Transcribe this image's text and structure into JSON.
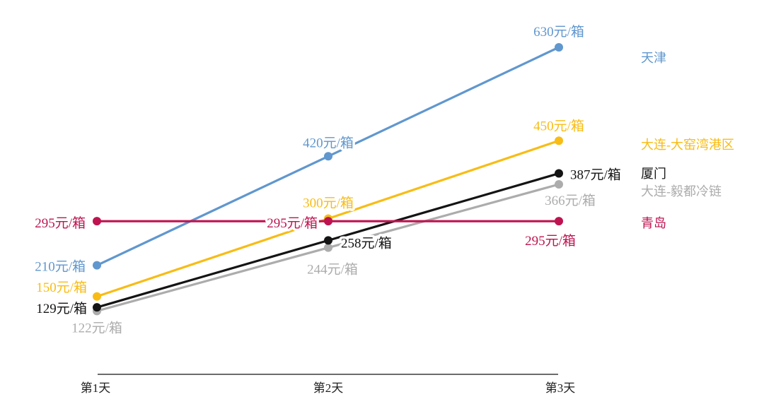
{
  "page": {
    "background": "#FFFFFF"
  },
  "chart_data": {
    "type": "line",
    "title": "",
    "categories": [
      "第1天",
      "第2天",
      "第3天"
    ],
    "unit_suffix": "元/箱",
    "series": [
      {
        "name": "天津",
        "color": "#6097CE",
        "values": [
          210,
          420,
          630
        ]
      },
      {
        "name": "大连-大窑湾港区",
        "color": "#F8BC15",
        "values": [
          150,
          300,
          450
        ]
      },
      {
        "name": "厦门",
        "color": "#141414",
        "values": [
          129,
          258,
          387
        ]
      },
      {
        "name": "大连-毅都冷链",
        "color": "#ACACAC",
        "values": [
          122,
          244,
          366
        ]
      },
      {
        "name": "青岛",
        "color": "#BE1350",
        "values": [
          295,
          295,
          295
        ]
      }
    ],
    "point_labels": [
      [
        "210元/箱",
        "420元/箱",
        "630元/箱"
      ],
      [
        "150元/箱",
        "300元/箱",
        "450元/箱"
      ],
      [
        "129元/箱",
        "258元/箱",
        "387元/箱"
      ],
      [
        "122元/箱",
        "244元/箱",
        "366元/箱"
      ],
      [
        "295元/箱",
        "295元/箱",
        "295元/箱"
      ]
    ],
    "ylim": [
      0,
      720
    ],
    "grid": false,
    "legend_position": "right",
    "axis_color": "#3A3A3A",
    "tick_label_color": "#222222"
  }
}
